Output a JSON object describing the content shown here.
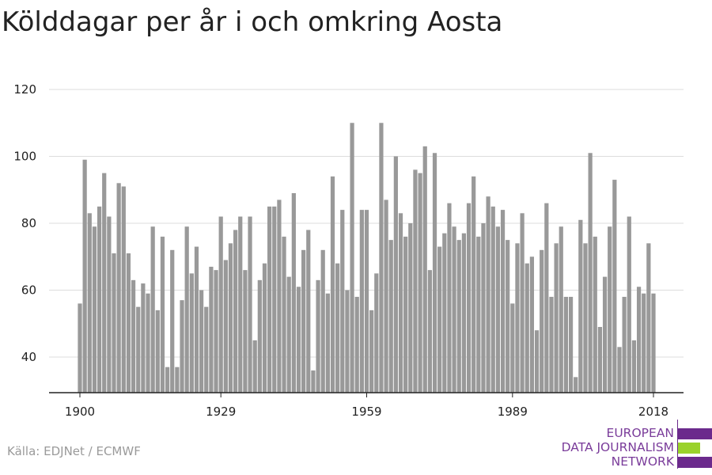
{
  "title": "Kölddagar per år i och omkring Aosta",
  "source": "Källa: EDJNet / ECMWF",
  "logo": {
    "lines": [
      "EUROPEAN",
      "DATA JOURNALISM",
      "NETWORK"
    ],
    "colors": {
      "purple": "#6b2a8c",
      "green": "#9ad22b",
      "text": "#7a3c9a"
    }
  },
  "colors": {
    "bar": "#999999",
    "grid": "#dddddd",
    "axis": "#222222"
  },
  "chart_data": {
    "type": "bar",
    "title": "Kölddagar per år i och omkring Aosta",
    "xlabel": "",
    "ylabel": "",
    "x_ticks": [
      "1900",
      "1929",
      "1959",
      "1989",
      "2018"
    ],
    "y_ticks": [
      40,
      60,
      80,
      100,
      120
    ],
    "ylim": [
      29,
      121
    ],
    "grid": true,
    "x": [
      1900,
      1901,
      1902,
      1903,
      1904,
      1905,
      1906,
      1907,
      1908,
      1909,
      1910,
      1911,
      1912,
      1913,
      1914,
      1915,
      1916,
      1917,
      1918,
      1919,
      1920,
      1921,
      1922,
      1923,
      1924,
      1925,
      1926,
      1927,
      1928,
      1929,
      1930,
      1931,
      1932,
      1933,
      1934,
      1935,
      1936,
      1937,
      1938,
      1939,
      1940,
      1941,
      1942,
      1943,
      1944,
      1945,
      1946,
      1947,
      1948,
      1949,
      1950,
      1951,
      1952,
      1953,
      1954,
      1955,
      1956,
      1957,
      1958,
      1959,
      1960,
      1961,
      1962,
      1963,
      1964,
      1965,
      1966,
      1967,
      1968,
      1969,
      1970,
      1971,
      1972,
      1973,
      1974,
      1975,
      1976,
      1977,
      1978,
      1979,
      1980,
      1981,
      1982,
      1983,
      1984,
      1985,
      1986,
      1987,
      1988,
      1989,
      1990,
      1991,
      1992,
      1993,
      1994,
      1995,
      1996,
      1997,
      1998,
      1999,
      2000,
      2001,
      2002,
      2003,
      2004,
      2005,
      2006,
      2007,
      2008,
      2009,
      2010,
      2011,
      2012,
      2013,
      2014,
      2015,
      2016,
      2017,
      2018
    ],
    "values": [
      56,
      99,
      83,
      79,
      85,
      95,
      82,
      71,
      92,
      91,
      71,
      63,
      55,
      62,
      59,
      79,
      54,
      76,
      37,
      72,
      37,
      57,
      79,
      65,
      73,
      60,
      55,
      67,
      66,
      82,
      69,
      74,
      78,
      82,
      66,
      82,
      45,
      63,
      68,
      85,
      85,
      87,
      76,
      64,
      89,
      61,
      72,
      78,
      36,
      63,
      72,
      59,
      94,
      68,
      84,
      60,
      110,
      58,
      84,
      84,
      54,
      65,
      110,
      87,
      75,
      100,
      83,
      76,
      80,
      96,
      95,
      103,
      66,
      101,
      73,
      77,
      86,
      79,
      75,
      77,
      86,
      94,
      76,
      80,
      88,
      85,
      79,
      84,
      75,
      56,
      74,
      83,
      68,
      70,
      48,
      72,
      86,
      58,
      74,
      79,
      58,
      58,
      34,
      81,
      74,
      101,
      76,
      49,
      64,
      79,
      93,
      43,
      58,
      82,
      45,
      61,
      59,
      74,
      59
    ]
  }
}
